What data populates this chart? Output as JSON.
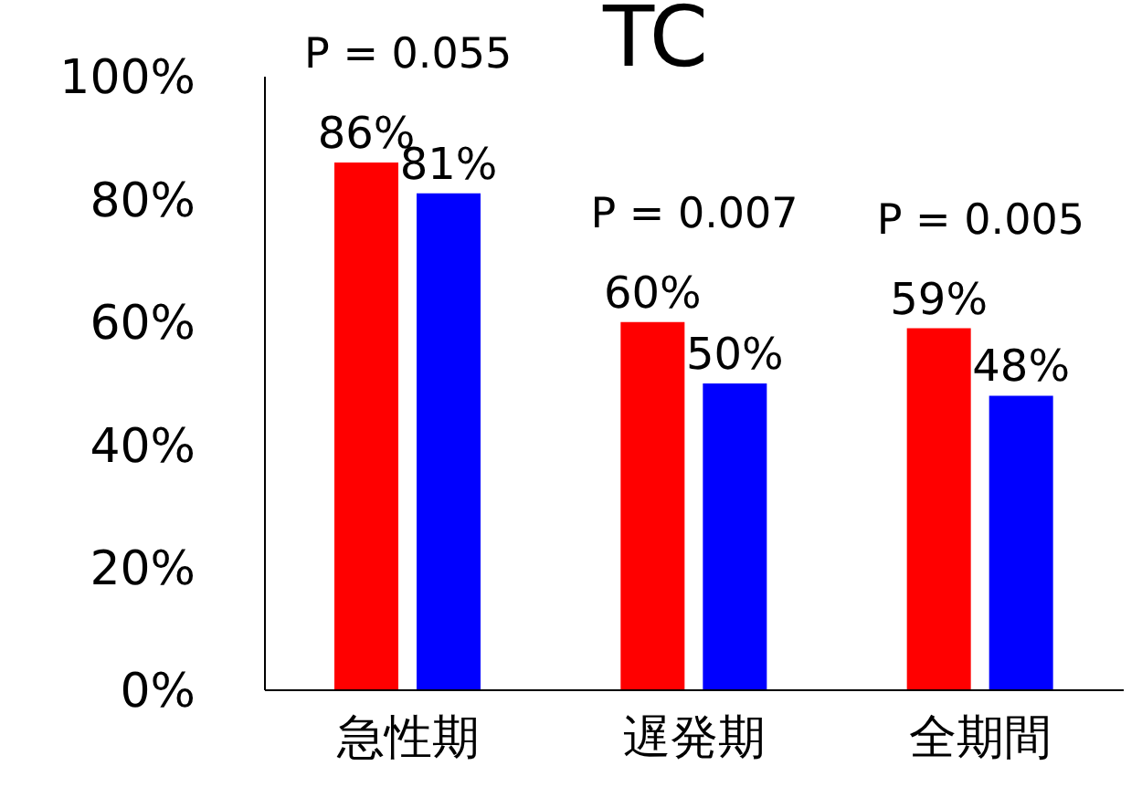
{
  "chart_data": {
    "type": "bar",
    "title": "TC",
    "categories": [
      "急性期",
      "遅発期",
      "全期間"
    ],
    "series": [
      {
        "color": "#ff0000",
        "values": [
          86,
          60,
          59
        ],
        "value_labels": [
          "86%",
          "60%",
          "59%"
        ]
      },
      {
        "color": "#0000ff",
        "values": [
          81,
          50,
          48
        ],
        "value_labels": [
          "81%",
          "50%",
          "48%"
        ]
      }
    ],
    "ylim": [
      0,
      100
    ],
    "yticks": [
      {
        "value": 0,
        "label": "0%"
      },
      {
        "value": 20,
        "label": "20%"
      },
      {
        "value": 40,
        "label": "40%"
      },
      {
        "value": 60,
        "label": "60%"
      },
      {
        "value": 80,
        "label": "80%"
      },
      {
        "value": 100,
        "label": "100%"
      }
    ],
    "grid": false,
    "legend": false,
    "annotations": [
      "P = 0.055",
      "P = 0.007",
      "P = 0.005"
    ]
  }
}
